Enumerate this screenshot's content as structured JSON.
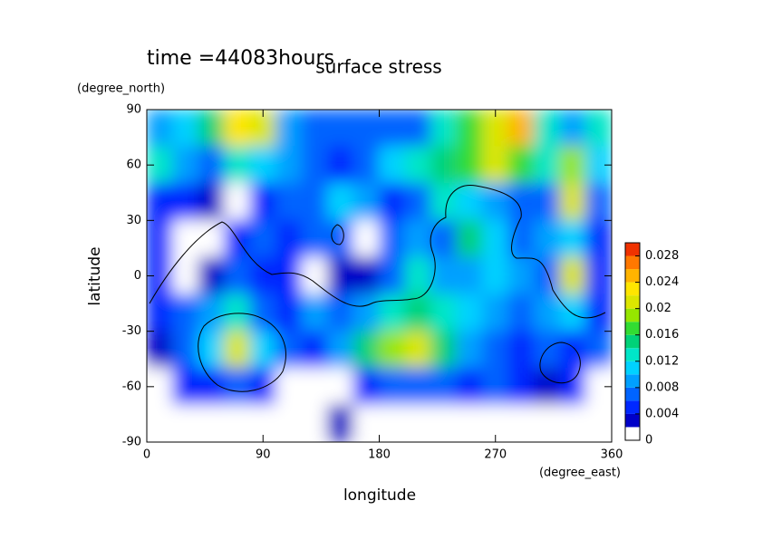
{
  "chart_data": {
    "type": "contour",
    "title": "surface stress",
    "subtitle": "time =44083hours",
    "x_label": "longitude",
    "x_unit": "(degree_east)",
    "y_label": "latitude",
    "y_unit": "(degree_north)",
    "xlim": [
      0,
      360
    ],
    "ylim": [
      -90,
      90
    ],
    "xticks": [
      0,
      90,
      180,
      270,
      360
    ],
    "yticks": [
      -90,
      -60,
      -30,
      0,
      30,
      60,
      90
    ],
    "lon": [
      10,
      30,
      50,
      70,
      90,
      110,
      130,
      150,
      170,
      190,
      210,
      230,
      250,
      270,
      290,
      310,
      330,
      350
    ],
    "lat": [
      80,
      60,
      40,
      20,
      0,
      -20,
      -40,
      -60,
      -80
    ],
    "z": [
      [
        0.008,
        0.01,
        0.014,
        0.022,
        0.02,
        0.008,
        0.006,
        0.006,
        0.006,
        0.006,
        0.006,
        0.012,
        0.016,
        0.02,
        0.024,
        0.012,
        0.008,
        0.012
      ],
      [
        0.012,
        0.008,
        0.006,
        0.012,
        0.01,
        0.008,
        0.006,
        0.004,
        0.006,
        0.01,
        0.012,
        0.014,
        0.016,
        0.02,
        0.016,
        0.012,
        0.018,
        0.01
      ],
      [
        0.004,
        0.004,
        0.002,
        0,
        0.004,
        0.006,
        0.006,
        0.01,
        0.008,
        0.004,
        0.006,
        0.012,
        0.01,
        0.008,
        0.006,
        0.006,
        0.02,
        0.006
      ],
      [
        0.004,
        0,
        0,
        0.004,
        0.006,
        0.004,
        0.006,
        0.006,
        0,
        0.006,
        0.008,
        0.006,
        0.014,
        0.01,
        0.006,
        0.008,
        0.01,
        0.004
      ],
      [
        0.004,
        0,
        0.002,
        0.006,
        0.004,
        0.004,
        0,
        0.002,
        0.002,
        0.006,
        0.012,
        0.008,
        0.008,
        0.01,
        0.008,
        0.006,
        0.02,
        0.004
      ],
      [
        0.004,
        0.006,
        0.008,
        0.012,
        0.006,
        0.004,
        0.008,
        0.006,
        0.008,
        0.012,
        0.014,
        0.012,
        0.01,
        0.008,
        0.006,
        0.008,
        0.01,
        0.004
      ],
      [
        0.002,
        0.006,
        0.01,
        0.02,
        0.01,
        0.006,
        0.004,
        0.008,
        0.014,
        0.018,
        0.02,
        0.014,
        0.008,
        0.006,
        0.004,
        0.006,
        0.004,
        0.006
      ],
      [
        0,
        0.004,
        0.004,
        0.006,
        0.004,
        0,
        0,
        0,
        0.004,
        0.006,
        0.006,
        0.006,
        0.004,
        0.006,
        0.004,
        0.002,
        0.004,
        0
      ],
      [
        0,
        0,
        0,
        0,
        0,
        0,
        0,
        0.002,
        0,
        0,
        0,
        0,
        0,
        0,
        0,
        0,
        0,
        0
      ]
    ],
    "colorbar": {
      "clim": [
        0,
        0.03
      ],
      "ticks": [
        0,
        0.004,
        0.008,
        0.012,
        0.016,
        0.02,
        0.024,
        0.028
      ],
      "colors": [
        "#ffffff",
        "#0000c8",
        "#0028ff",
        "#0064ff",
        "#00a0ff",
        "#00d2ff",
        "#00e6c8",
        "#00d278",
        "#32dc32",
        "#96e600",
        "#dce600",
        "#ffe600",
        "#ffb400",
        "#ff7800",
        "#f03200"
      ]
    }
  }
}
